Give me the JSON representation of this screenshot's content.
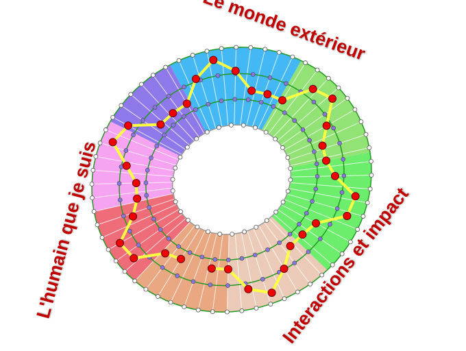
{
  "labels": {
    "outer_world": "Le monde extérieur",
    "human_self": "L'humain que je suis",
    "interactions": "Interactions et impact"
  },
  "colors": {
    "label_text": "#c00000",
    "path": "#ffff44",
    "path_nodes": "#ee0000",
    "ring_lines": "#229922",
    "inner_nodes": "#8877dd",
    "sectors": [
      "#43b8f5",
      "#8f78ea",
      "#f6a3f2",
      "#ef6d78",
      "#e9a882",
      "#ebcbb8",
      "#6ced6c",
      "#92e276"
    ]
  }
}
